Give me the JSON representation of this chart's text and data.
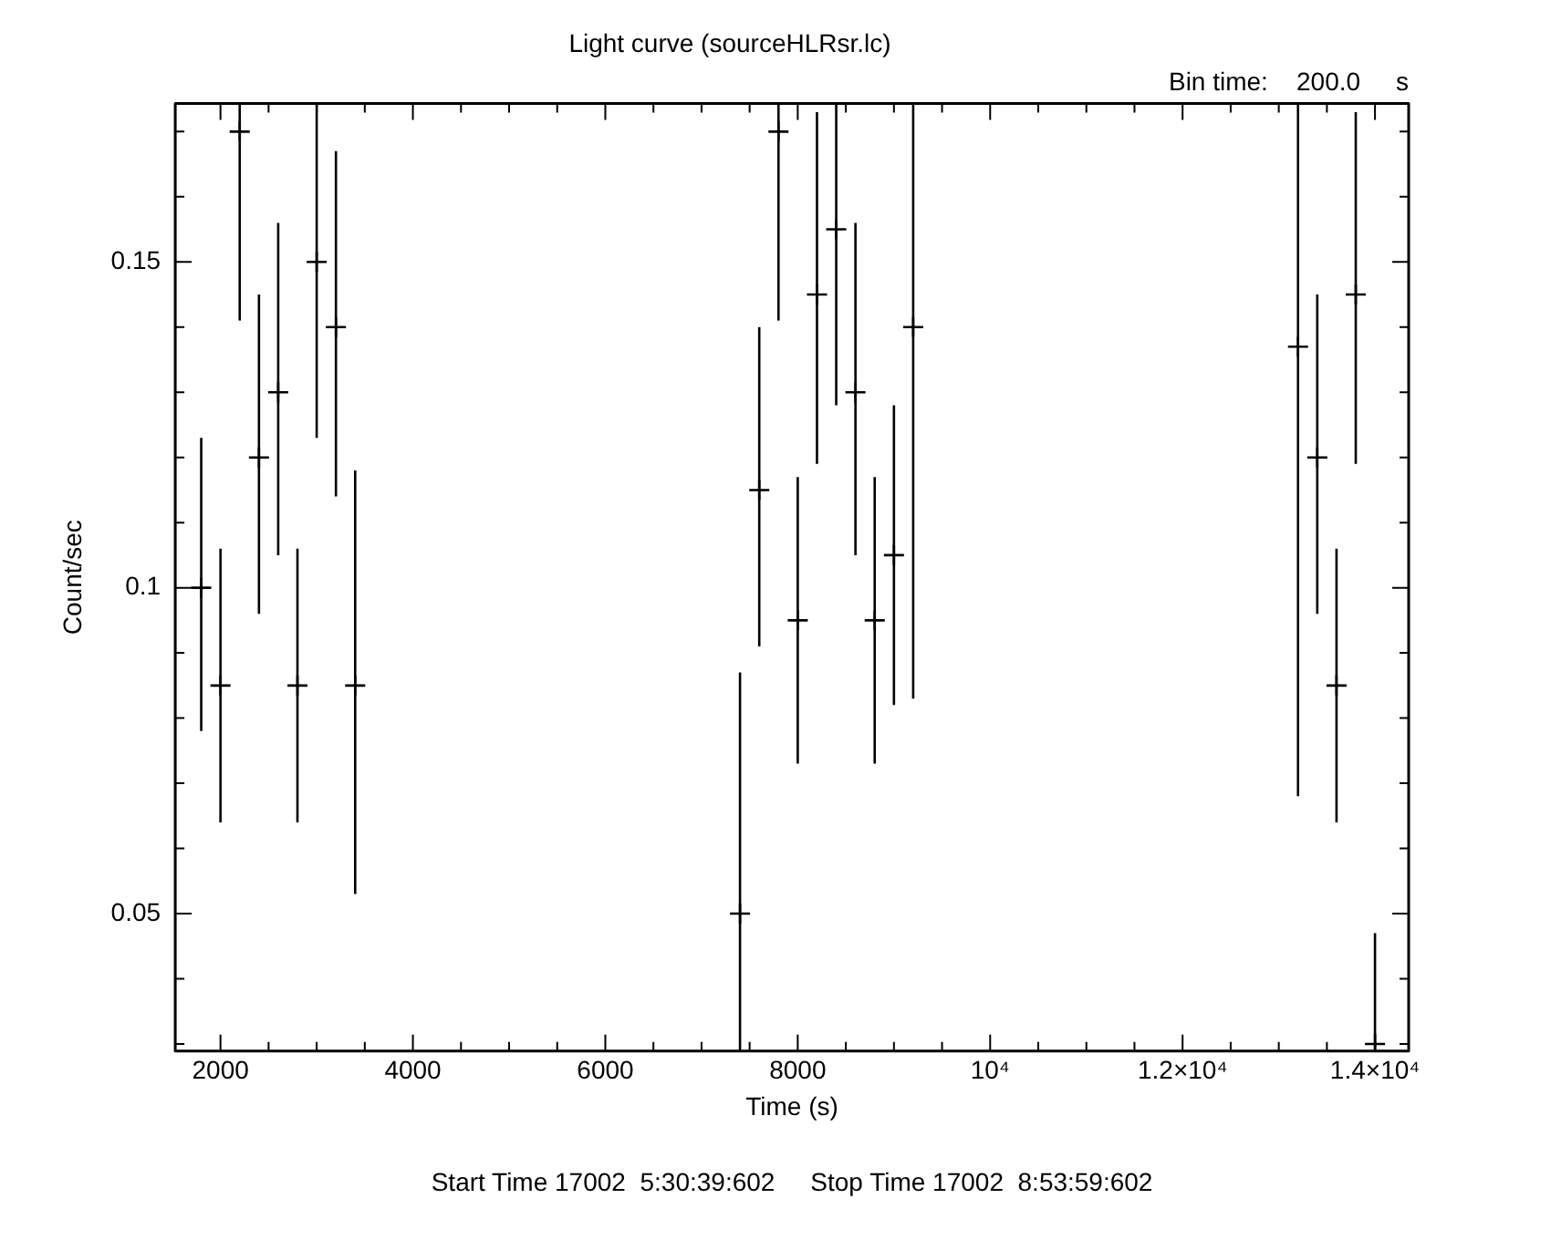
{
  "chart_data": {
    "type": "scatter",
    "title": "Light curve (sourceHLRsr.lc)",
    "xlabel": "Time (s)",
    "ylabel": "Count/sec",
    "annotations": [
      "Bin time:    200.0     s",
      "Start Time 17002  5:30:39:602     Stop Time 17002  8:53:59:602"
    ],
    "x": [
      1800,
      2000,
      2200,
      2400,
      2600,
      2800,
      3000,
      3200,
      3400,
      7400,
      7600,
      7800,
      8000,
      8200,
      8400,
      8600,
      8800,
      9000,
      9200,
      13200,
      13400,
      13600,
      13800,
      14000
    ],
    "values": [
      0.1,
      0.085,
      0.17,
      0.12,
      0.13,
      0.085,
      0.15,
      0.14,
      0.085,
      0.05,
      0.115,
      0.17,
      0.095,
      0.145,
      0.155,
      0.13,
      0.095,
      0.105,
      0.14,
      0.137,
      0.12,
      0.085,
      0.145,
      0.03
    ],
    "errors": [
      [
        0.078,
        0.123
      ],
      0.021,
      [
        0.141,
        0.1743
      ],
      [
        0.096,
        0.145
      ],
      [
        0.105,
        0.156
      ],
      0.021,
      [
        0.123,
        0.1743
      ],
      [
        0.114,
        0.167
      ],
      [
        0.053,
        0.118
      ],
      [
        0.0289,
        0.087
      ],
      [
        0.091,
        0.14
      ],
      [
        0.141,
        0.1743
      ],
      0.022,
      [
        0.119,
        0.173
      ],
      [
        0.128,
        0.1743
      ],
      [
        0.105,
        0.156
      ],
      0.022,
      0.023,
      [
        0.083,
        0.1743
      ],
      [
        0.068,
        0.1743
      ],
      [
        0.096,
        0.145
      ],
      0.021,
      [
        0.119,
        0.173
      ],
      [
        0.0289,
        0.047
      ]
    ],
    "color": "#000000",
    "marker": "cross",
    "xlim": [
      1530,
      14350
    ],
    "ylim": [
      0.0289,
      0.1743
    ],
    "xticks": [
      {
        "value": 2000,
        "label": "2000"
      },
      {
        "value": 2500,
        "label": null
      },
      {
        "value": 3000,
        "label": null
      },
      {
        "value": 3500,
        "label": null
      },
      {
        "value": 4000,
        "label": "4000"
      },
      {
        "value": 4500,
        "label": null
      },
      {
        "value": 5000,
        "label": null
      },
      {
        "value": 5500,
        "label": null
      },
      {
        "value": 6000,
        "label": "6000"
      },
      {
        "value": 6500,
        "label": null
      },
      {
        "value": 7000,
        "label": null
      },
      {
        "value": 7500,
        "label": null
      },
      {
        "value": 8000,
        "label": "8000"
      },
      {
        "value": 8500,
        "label": null
      },
      {
        "value": 9000,
        "label": null
      },
      {
        "value": 9500,
        "label": null
      },
      {
        "value": 10000,
        "label": "10⁴"
      },
      {
        "value": 10500,
        "label": null
      },
      {
        "value": 11000,
        "label": null
      },
      {
        "value": 11500,
        "label": null
      },
      {
        "value": 12000,
        "label": "1.2×10⁴"
      },
      {
        "value": 12500,
        "label": null
      },
      {
        "value": 13000,
        "label": null
      },
      {
        "value": 13500,
        "label": null
      },
      {
        "value": 14000,
        "label": "1.4×10⁴"
      }
    ],
    "yticks": [
      {
        "value": 0.03,
        "label": null
      },
      {
        "value": 0.04,
        "label": null
      },
      0.05,
      {
        "value": 0.06,
        "label": null
      },
      {
        "value": 0.07,
        "label": null
      },
      {
        "value": 0.08,
        "label": null
      },
      {
        "value": 0.09,
        "label": null
      },
      0.1,
      {
        "value": 0.11,
        "label": null
      },
      {
        "value": 0.12,
        "label": null
      },
      {
        "value": 0.13,
        "label": null
      },
      {
        "value": 0.14,
        "label": null
      },
      0.15,
      {
        "value": 0.16,
        "label": null
      },
      {
        "value": 0.17,
        "label": null
      }
    ]
  }
}
